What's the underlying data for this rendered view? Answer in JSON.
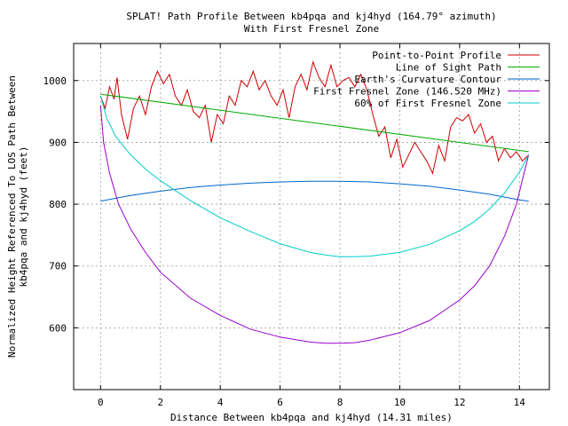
{
  "chart_data": {
    "type": "line",
    "title": "SPLAT! Path Profile Between kb4pqa and kj4hyd (164.79° azimuth)",
    "subtitle": "With First Fresnel Zone",
    "xlabel": "Distance Between kb4pqa and kj4hyd (14.31 miles)",
    "ylabel_lines": [
      "Normalized Height Referenced To LOS Path Between",
      "kb4pqa and kj4hyd (feet)"
    ],
    "xlim": [
      -0.9,
      15.0
    ],
    "ylim": [
      500,
      1060
    ],
    "xticks": [
      0,
      2,
      4,
      6,
      8,
      10,
      12,
      14
    ],
    "yticks": [
      600,
      700,
      800,
      900,
      1000
    ],
    "grid": true,
    "legend_position": "top-right",
    "series": [
      {
        "name": "Point-to-Point Profile",
        "color": "#cc0000",
        "x": [
          0,
          0.15,
          0.3,
          0.45,
          0.55,
          0.7,
          0.9,
          1.1,
          1.3,
          1.5,
          1.7,
          1.9,
          2.1,
          2.3,
          2.5,
          2.7,
          2.9,
          3.1,
          3.3,
          3.5,
          3.7,
          3.9,
          4.1,
          4.3,
          4.5,
          4.7,
          4.9,
          5.1,
          5.3,
          5.5,
          5.7,
          5.9,
          6.1,
          6.3,
          6.5,
          6.7,
          6.9,
          7.1,
          7.3,
          7.5,
          7.7,
          7.9,
          8.1,
          8.3,
          8.5,
          8.7,
          8.9,
          9.1,
          9.3,
          9.5,
          9.7,
          9.9,
          10.1,
          10.3,
          10.5,
          10.7,
          10.9,
          11.1,
          11.3,
          11.5,
          11.7,
          11.9,
          12.1,
          12.3,
          12.5,
          12.7,
          12.9,
          13.1,
          13.3,
          13.5,
          13.7,
          13.9,
          14.1,
          14.31
        ],
        "values": [
          975,
          955,
          990,
          970,
          1005,
          945,
          905,
          955,
          975,
          945,
          990,
          1015,
          995,
          1010,
          975,
          960,
          985,
          950,
          940,
          960,
          900,
          945,
          930,
          975,
          960,
          1000,
          990,
          1015,
          985,
          1000,
          975,
          960,
          985,
          940,
          990,
          1010,
          985,
          1030,
          1005,
          990,
          1025,
          990,
          1000,
          1005,
          990,
          1010,
          985,
          945,
          910,
          925,
          875,
          905,
          860,
          880,
          900,
          885,
          870,
          850,
          895,
          870,
          925,
          940,
          935,
          945,
          915,
          930,
          900,
          910,
          870,
          890,
          875,
          885,
          870,
          880
        ]
      },
      {
        "name": "Line of Sight Path",
        "color": "#00aa00",
        "x": [
          0,
          14.31
        ],
        "values": [
          978,
          885
        ]
      },
      {
        "name": "Earth's Curvature Contour",
        "color": "#0066cc",
        "x": [
          0,
          1,
          2,
          3,
          4,
          5,
          6,
          7,
          8,
          9,
          10,
          11,
          12,
          13,
          14,
          14.31
        ],
        "values": [
          805,
          814,
          821,
          827,
          831,
          834,
          836,
          837,
          837,
          836,
          833,
          829,
          823,
          816,
          807,
          805
        ]
      },
      {
        "name": "First Fresnel Zone (146.520 MHz)",
        "color": "#9900cc",
        "x": [
          0,
          0.1,
          0.3,
          0.6,
          1,
          1.5,
          2,
          3,
          4,
          5,
          6,
          7,
          7.5,
          8,
          8.5,
          9,
          10,
          11,
          12,
          12.5,
          13,
          13.5,
          13.9,
          14.1,
          14.31
        ],
        "values": [
          960,
          900,
          850,
          800,
          760,
          722,
          690,
          648,
          620,
          598,
          585,
          577,
          575,
          575,
          576,
          580,
          592,
          612,
          645,
          668,
          700,
          748,
          800,
          840,
          880
        ]
      },
      {
        "name": "60% of First Fresnel Zone",
        "color": "#00cccc",
        "x": [
          0,
          0.2,
          0.5,
          1,
          1.5,
          2,
          3,
          4,
          5,
          6,
          7,
          7.5,
          8,
          8.5,
          9,
          10,
          11,
          12,
          12.5,
          13,
          13.5,
          14,
          14.31
        ],
        "values": [
          975,
          940,
          910,
          880,
          857,
          838,
          806,
          778,
          756,
          736,
          722,
          718,
          715,
          715,
          716,
          722,
          735,
          757,
          772,
          792,
          818,
          852,
          880
        ]
      }
    ]
  }
}
